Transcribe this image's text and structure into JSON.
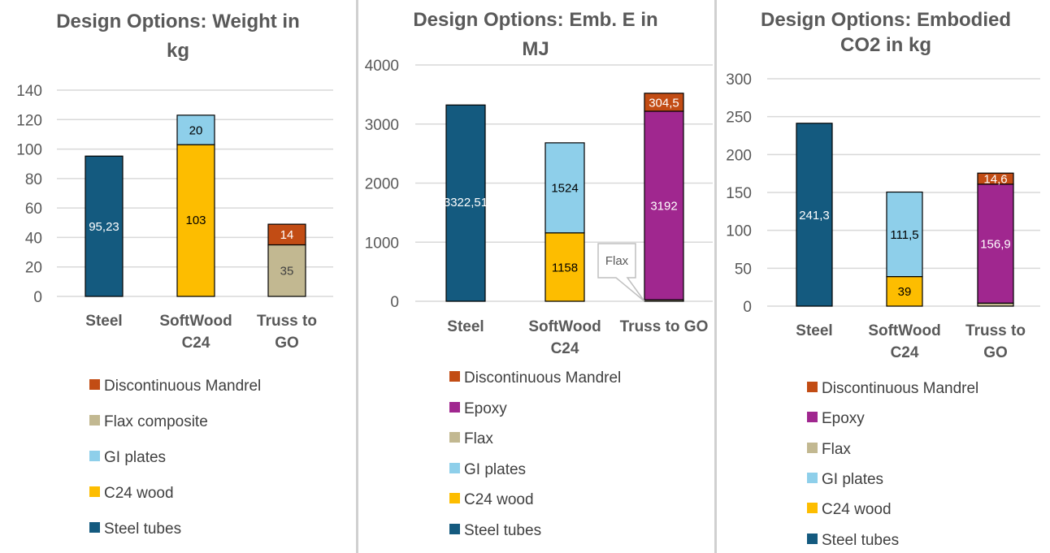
{
  "colors": {
    "Steel tubes": "#145a7f",
    "C24 wood": "#fdbd00",
    "GI plates": "#8ecfea",
    "Flax composite": "#c2b891",
    "Flax": "#c2b891",
    "Epoxy": "#a0278f",
    "Discontinuous Mandrel": "#c24c14"
  },
  "chart_data": [
    {
      "type": "bar",
      "stacked": true,
      "title": [
        "Design Options: Weight in",
        "kg"
      ],
      "categories": [
        [
          "Steel"
        ],
        [
          "SoftWood",
          "C24"
        ],
        [
          "Truss to",
          "GO"
        ]
      ],
      "ylim": [
        0,
        140
      ],
      "yticks": [
        0,
        20,
        40,
        60,
        80,
        100,
        120,
        140
      ],
      "series": [
        {
          "name": "Steel tubes",
          "values": [
            95.23,
            0,
            0
          ],
          "labels": [
            "95,23",
            "",
            ""
          ]
        },
        {
          "name": "C24 wood",
          "values": [
            0,
            103,
            0
          ],
          "labels": [
            "",
            "103",
            ""
          ]
        },
        {
          "name": "GI plates",
          "values": [
            0,
            20,
            0
          ],
          "labels": [
            "",
            "20",
            ""
          ]
        },
        {
          "name": "Flax composite",
          "values": [
            0,
            0,
            35
          ],
          "labels": [
            "",
            "",
            "35"
          ]
        },
        {
          "name": "Discontinuous Mandrel",
          "values": [
            0,
            0,
            14
          ],
          "labels": [
            "",
            "",
            "14"
          ]
        }
      ],
      "legend": [
        "Discontinuous Mandrel",
        "Flax composite",
        "GI plates",
        "C24 wood",
        "Steel tubes"
      ]
    },
    {
      "type": "bar",
      "stacked": true,
      "title": [
        "Design Options: Emb. E in",
        "MJ"
      ],
      "categories": [
        [
          "Steel"
        ],
        [
          "SoftWood",
          "C24"
        ],
        [
          "Truss to GO"
        ]
      ],
      "ylim": [
        0,
        4000
      ],
      "yticks": [
        0,
        1000,
        2000,
        3000,
        4000
      ],
      "series": [
        {
          "name": "Steel tubes",
          "values": [
            3322.51,
            0,
            0
          ],
          "labels": [
            "3322,51",
            "",
            ""
          ]
        },
        {
          "name": "C24 wood",
          "values": [
            0,
            1158,
            0
          ],
          "labels": [
            "",
            "1158",
            ""
          ]
        },
        {
          "name": "GI plates",
          "values": [
            0,
            1524,
            0
          ],
          "labels": [
            "",
            "1524",
            ""
          ]
        },
        {
          "name": "Flax",
          "values": [
            0,
            0,
            25
          ],
          "labels": [
            "",
            "",
            ""
          ]
        },
        {
          "name": "Epoxy",
          "values": [
            0,
            0,
            3192
          ],
          "labels": [
            "",
            "",
            "3192"
          ]
        },
        {
          "name": "Discontinuous Mandrel",
          "values": [
            0,
            0,
            304.5
          ],
          "labels": [
            "",
            "",
            "304,5"
          ]
        }
      ],
      "annotation": "Flax",
      "legend": [
        "Discontinuous Mandrel",
        "Epoxy",
        "Flax",
        "GI plates",
        "C24 wood",
        "Steel tubes"
      ]
    },
    {
      "type": "bar",
      "stacked": true,
      "title": [
        "Design Options: Embodied",
        "CO2 in kg"
      ],
      "categories": [
        [
          "Steel"
        ],
        [
          "SoftWood",
          "C24"
        ],
        [
          "Truss to",
          "GO"
        ]
      ],
      "ylim": [
        0,
        300
      ],
      "yticks": [
        0,
        50,
        100,
        150,
        200,
        250,
        300
      ],
      "series": [
        {
          "name": "Steel tubes",
          "values": [
            241.3,
            0,
            0
          ],
          "labels": [
            "241,3",
            "",
            ""
          ]
        },
        {
          "name": "C24 wood",
          "values": [
            0,
            39,
            0
          ],
          "labels": [
            "",
            "39",
            ""
          ]
        },
        {
          "name": "GI plates",
          "values": [
            0,
            111.5,
            0
          ],
          "labels": [
            "",
            "111,5",
            ""
          ]
        },
        {
          "name": "Flax",
          "values": [
            0,
            0,
            4
          ],
          "labels": [
            "",
            "",
            ""
          ]
        },
        {
          "name": "Epoxy",
          "values": [
            0,
            0,
            156.9
          ],
          "labels": [
            "",
            "",
            "156,9"
          ]
        },
        {
          "name": "Discontinuous Mandrel",
          "values": [
            0,
            0,
            14.6
          ],
          "labels": [
            "",
            "",
            "14,6"
          ]
        }
      ],
      "legend": [
        "Discontinuous Mandrel",
        "Epoxy",
        "Flax",
        "GI plates",
        "C24 wood",
        "Steel tubes"
      ]
    }
  ]
}
